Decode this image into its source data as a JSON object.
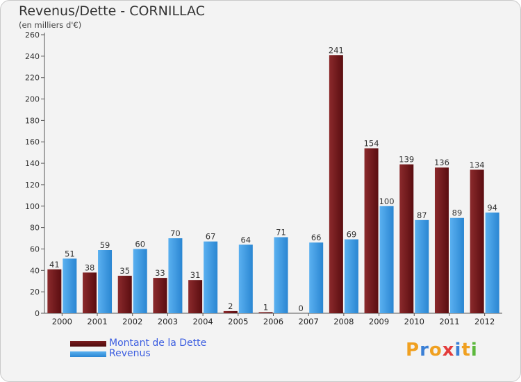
{
  "chart_data": {
    "type": "bar",
    "title": "Revenus/Dette - CORNILLAC",
    "subtitle": "(en milliers d'€)",
    "categories": [
      "2000",
      "2001",
      "2002",
      "2003",
      "2004",
      "2005",
      "2006",
      "2007",
      "2008",
      "2009",
      "2010",
      "2011",
      "2012"
    ],
    "series": [
      {
        "name": "Montant de la Dette",
        "color": "#7a1c1e",
        "values": [
          41,
          38,
          35,
          33,
          31,
          2,
          1,
          0,
          241,
          154,
          139,
          136,
          134
        ]
      },
      {
        "name": "Revenus",
        "color": "#3d9be3",
        "values": [
          51,
          59,
          60,
          70,
          67,
          64,
          71,
          66,
          69,
          100,
          87,
          89,
          94
        ]
      }
    ],
    "ylim": [
      0,
      260
    ],
    "yticks": [
      0,
      20,
      40,
      60,
      80,
      100,
      120,
      140,
      160,
      180,
      200,
      220,
      240,
      260
    ],
    "grid": false,
    "legend_position": "bottom-left"
  },
  "logo": {
    "text": "Proxiti",
    "letters": [
      "P",
      "r",
      "o",
      "x",
      "i",
      "t",
      "i"
    ],
    "colors": [
      "#f0a020",
      "#3a7fd5",
      "#f0a020",
      "#e33b3b",
      "#3a7fd5",
      "#f0a020",
      "#5cb83c"
    ]
  }
}
